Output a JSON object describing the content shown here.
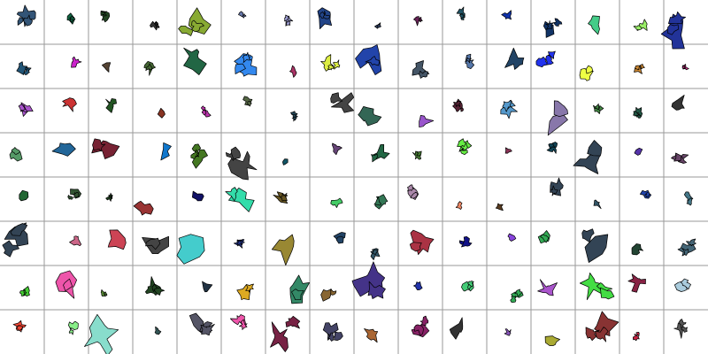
{
  "grid": {
    "columns": 16,
    "rows": [
      {
        "row": 1,
        "fills": [
          "#335577",
          "#116644",
          "#224422",
          "#333333",
          "#88aa33",
          "#6677aa",
          "#9999cc",
          "#224488",
          "#334466",
          "#662255",
          "#225566",
          "#1133aa",
          "#113366",
          "#44cc88",
          "#99ee66",
          "#223399"
        ]
      },
      {
        "row": 2,
        "fills": [
          "#225577",
          "#cc22cc",
          "#554433",
          "#446633",
          "#226644",
          "#3388ee",
          "#aa3366",
          "#ddee44",
          "#2244aa",
          "#445566",
          "#5577aa",
          "#224466",
          "#2233ee",
          "#eeff44",
          "#cc8833",
          "#cc3388"
        ]
      },
      {
        "row": 3,
        "fills": [
          "#aa55cc",
          "#cc3333",
          "#225522",
          "#883322",
          "#bb33aa",
          "#556644",
          "#224455",
          "#444444",
          "#336655",
          "#9955cc",
          "#552233",
          "#5599cc",
          "#8877aa",
          "#448844",
          "#225544",
          "#333333"
        ]
      },
      {
        "row": 4,
        "fills": [
          "#559966",
          "#226699",
          "#772233",
          "#1177cc",
          "#447722",
          "#444444",
          "#115566",
          "#664477",
          "#226644",
          "#447733",
          "#66ee44",
          "#883355",
          "#114455",
          "#334455",
          "#5533aa",
          "#664466"
        ]
      },
      {
        "row": 5,
        "fills": [
          "#226633",
          "#335533",
          "#224422",
          "#993333",
          "#111166",
          "#33ddaa",
          "#665522",
          "#44cc66",
          "#337755",
          "#aa88aa",
          "#ee8866",
          "#5a3d22",
          "#334455",
          "#335566",
          "#2244aa",
          "#447788"
        ]
      },
      {
        "row": 6,
        "fills": [
          "#334455",
          "#cc6688",
          "#cc4455",
          "#444444",
          "#44cccc",
          "#223388",
          "#998833",
          "#224466",
          "#335566",
          "#aa3344",
          "#111188",
          "#8844dd",
          "#33aa55",
          "#334455",
          "#224433",
          "#446677"
        ]
      },
      {
        "row": 7,
        "fills": [
          "#44cc33",
          "#ee55aa",
          "#558833",
          "#224422",
          "#223344",
          "#ddaa22",
          "#338866",
          "#886633",
          "#443388",
          "#2233aa",
          "#44cc77",
          "#33aa55",
          "#aa55cc",
          "#44dd44",
          "#882244",
          "#aaccdd"
        ]
      },
      {
        "row": 8,
        "fills": [
          "#ee4433",
          "#88ee88",
          "#88ddcc",
          "#335555",
          "#555566",
          "#ee55aa",
          "#772244",
          "#444466",
          "#aa6633",
          "#882266",
          "#333333",
          "#8855bb",
          "#aaaa33",
          "#883333",
          "#cc2244",
          "#555555"
        ]
      }
    ]
  }
}
